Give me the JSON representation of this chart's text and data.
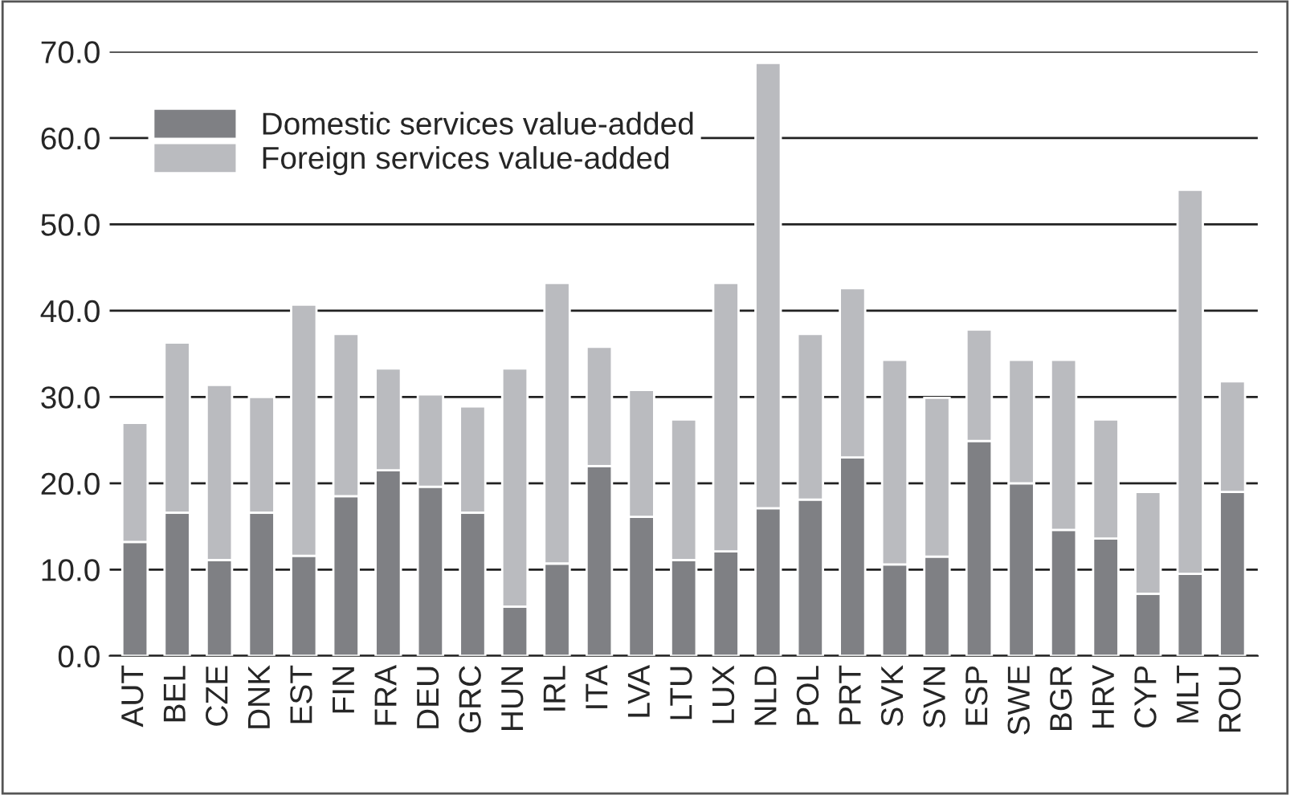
{
  "chart_data": {
    "type": "bar",
    "stacked": true,
    "categories": [
      "AUT",
      "BEL",
      "CZE",
      "DNK",
      "EST",
      "FIN",
      "FRA",
      "DEU",
      "GRC",
      "HUN",
      "IRL",
      "ITA",
      "LVA",
      "LTU",
      "LUX",
      "NLD",
      "POL",
      "PRT",
      "SVK",
      "SVN",
      "ESP",
      "SWE",
      "BGR",
      "HRV",
      "CYP",
      "MLT",
      "ROU"
    ],
    "series": [
      {
        "name": "Domestic services value-added",
        "color": "#7f8084",
        "values": [
          13.2,
          16.6,
          11.1,
          16.6,
          11.6,
          18.5,
          21.5,
          19.6,
          16.6,
          5.7,
          10.7,
          22.0,
          16.1,
          11.1,
          12.1,
          17.1,
          18.1,
          23.0,
          10.6,
          11.5,
          24.9,
          20.0,
          14.6,
          13.6,
          7.2,
          9.5,
          19.0
        ]
      },
      {
        "name": "Foreign services value-added",
        "color": "#babbbf",
        "values": [
          13.8,
          19.7,
          20.3,
          13.4,
          29.1,
          18.8,
          11.8,
          10.7,
          12.3,
          27.6,
          32.5,
          13.8,
          14.7,
          16.3,
          31.1,
          51.6,
          19.2,
          19.6,
          23.7,
          18.4,
          12.9,
          14.3,
          19.7,
          13.8,
          11.8,
          44.5,
          12.8
        ]
      }
    ],
    "ylim": [
      0,
      70
    ],
    "yticks": [
      {
        "value": 0,
        "label": "0.0"
      },
      {
        "value": 10,
        "label": "10.0"
      },
      {
        "value": 20,
        "label": "20.0"
      },
      {
        "value": 30,
        "label": "30.0"
      },
      {
        "value": 40,
        "label": "40.0"
      },
      {
        "value": 50,
        "label": "50.0"
      },
      {
        "value": 60,
        "label": "60.0"
      },
      {
        "value": 70,
        "label": "70.0"
      }
    ],
    "grid": "y",
    "legend": "top left"
  }
}
